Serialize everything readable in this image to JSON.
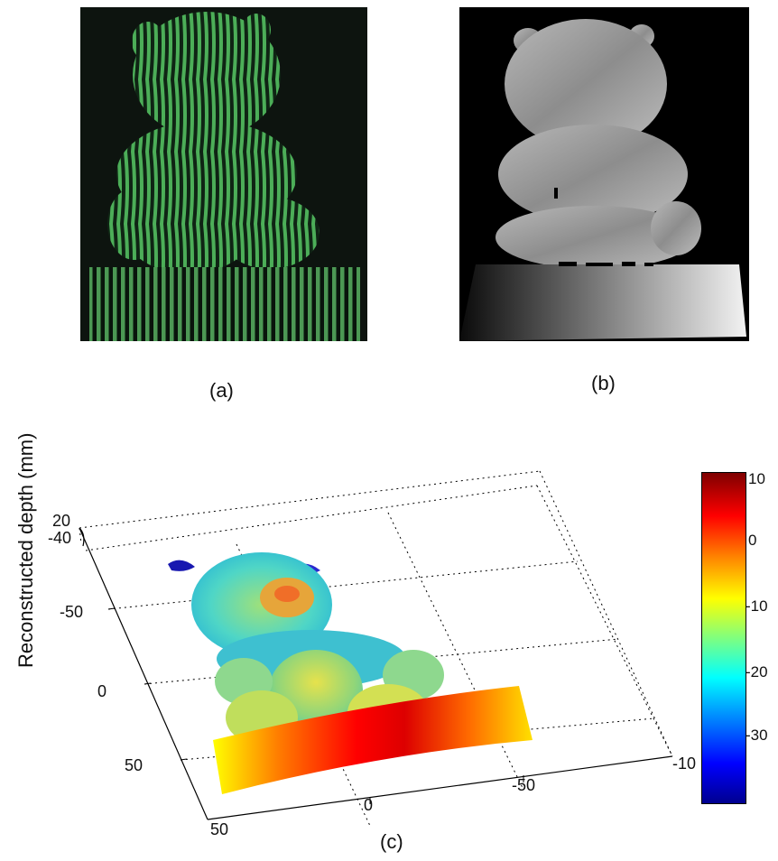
{
  "captions": {
    "a": "(a)",
    "b": "(b)",
    "c": "(c)"
  },
  "plot": {
    "zlabel": "Reconstructed depth (mm)",
    "z_ticks": [
      "20",
      "-40"
    ],
    "y_ticks": [
      "-50",
      "0",
      "50"
    ],
    "x_ticks_front": [
      "50",
      "0",
      "-50"
    ],
    "x_tick_right": "-10"
  },
  "colorbar": {
    "ticks": [
      "10",
      "0",
      "-10",
      "-20",
      "-30"
    ],
    "colormap": "jet",
    "max_color": "#7f0000",
    "min_color": "#00008f"
  }
}
